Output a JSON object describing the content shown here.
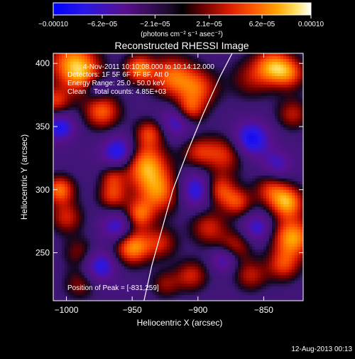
{
  "chart_data": {
    "type": "heatmap",
    "title": "Reconstructed RHESSI Image",
    "xlabel": "Heliocentric X (arcsec)",
    "ylabel": "Heliocentric Y (arcsec)",
    "xlim": [
      -1010,
      -820
    ],
    "ylim": [
      212,
      408
    ],
    "x_ticks": [
      -1000,
      -950,
      -900,
      -850
    ],
    "x_tick_labels": [
      "−1000",
      "−950",
      "−900",
      "−850"
    ],
    "y_ticks": [
      250,
      300,
      350,
      400
    ],
    "y_tick_labels": [
      "250",
      "300",
      "350",
      "400"
    ],
    "colorbar": {
      "min": -0.0001,
      "max": 0.0001,
      "ticks": [
        -0.0001,
        -6.2e-05,
        -2.1e-05,
        2.1e-05,
        6.2e-05,
        0.0001
      ],
      "tick_labels": [
        "−0.00010",
        "−6.2e−05",
        "−2.1e−05",
        "2.1e−05",
        "6.2e−05",
        "0.00010"
      ],
      "unit_label": "(photons cm⁻² s⁻¹ asec⁻²)"
    },
    "annotations": [
      "4-Nov-2011 10:10:08.000 to 10:14:12.000",
      "Detectors: 1F 5F 6F 7F 8F, Att 0",
      "Energy Range: 25.0 - 50.0 keV",
      "Clean    Total counts: 4.85E+03"
    ],
    "peak_label": "Position of Peak = [-831,259]",
    "limb_curve": [
      [
        -941,
        212
      ],
      [
        -935,
        240
      ],
      [
        -927,
        270
      ],
      [
        -919,
        300
      ],
      [
        -908,
        330
      ],
      [
        -896,
        360
      ],
      [
        -883,
        390
      ],
      [
        -874,
        408
      ]
    ],
    "blobs": [
      [
        -995,
        400,
        13,
        0.9
      ],
      [
        -985,
        388,
        10,
        0.5
      ],
      [
        -973,
        362,
        10,
        0.75
      ],
      [
        -978,
        381,
        7,
        -0.5
      ],
      [
        -945,
        396,
        8,
        0.8
      ],
      [
        -920,
        390,
        12,
        0.75
      ],
      [
        -900,
        380,
        11,
        0.65
      ],
      [
        -907,
        362,
        8,
        0.7
      ],
      [
        -860,
        388,
        12,
        0.4
      ],
      [
        -843,
        398,
        10,
        0.8
      ],
      [
        -830,
        392,
        9,
        0.6
      ],
      [
        -828,
        360,
        9,
        0.5
      ],
      [
        -880,
        328,
        11,
        0.6
      ],
      [
        -900,
        330,
        9,
        0.5
      ],
      [
        -937,
        345,
        8,
        0.6
      ],
      [
        -960,
        330,
        9,
        -0.7
      ],
      [
        -940,
        320,
        12,
        0.9
      ],
      [
        -930,
        298,
        12,
        0.8
      ],
      [
        -965,
        295,
        8,
        0.6
      ],
      [
        -1005,
        300,
        8,
        0.8
      ],
      [
        -1000,
        278,
        9,
        0.55
      ],
      [
        -990,
        250,
        9,
        0.4
      ],
      [
        -960,
        270,
        9,
        -0.6
      ],
      [
        -945,
        280,
        8,
        0.7
      ],
      [
        -950,
        255,
        10,
        0.95
      ],
      [
        -928,
        258,
        9,
        0.5
      ],
      [
        -900,
        300,
        10,
        -0.7
      ],
      [
        -885,
        300,
        9,
        0.75
      ],
      [
        -870,
        290,
        8,
        0.6
      ],
      [
        -892,
        270,
        10,
        0.55
      ],
      [
        -872,
        255,
        9,
        0.5
      ],
      [
        -855,
        270,
        8,
        -0.5
      ],
      [
        -845,
        300,
        9,
        0.55
      ],
      [
        -832,
        290,
        9,
        0.9
      ],
      [
        -828,
        262,
        11,
        0.95
      ],
      [
        -835,
        240,
        9,
        0.6
      ],
      [
        -860,
        232,
        9,
        0.5
      ],
      [
        -905,
        232,
        9,
        0.55
      ],
      [
        -925,
        225,
        8,
        0.4
      ],
      [
        -975,
        240,
        9,
        -0.6
      ],
      [
        -990,
        225,
        9,
        0.4
      ],
      [
        -1005,
        350,
        8,
        -0.6
      ],
      [
        -915,
        355,
        9,
        -0.6
      ],
      [
        -860,
        340,
        10,
        -0.7
      ],
      [
        -840,
        320,
        8,
        -0.4
      ],
      [
        -1008,
        370,
        8,
        0.6
      ],
      [
        -965,
        310,
        7,
        0.45
      ],
      [
        -880,
        245,
        7,
        -0.5
      ]
    ]
  },
  "footer": {
    "date": "12-Aug-2013 00:13"
  }
}
